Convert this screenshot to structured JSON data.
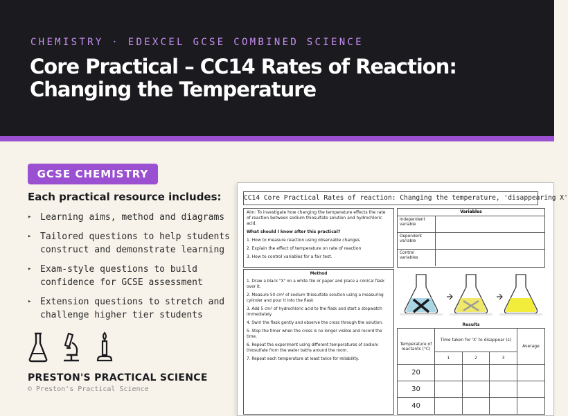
{
  "header": {
    "kicker": "CHEMISTRY · EDEXCEL GCSE COMBINED SCIENCE",
    "title": "Core Practical – CC14 Rates of Reaction: Changing the Temperature"
  },
  "badge": "GCSE CHEMISTRY",
  "includes_heading": "Each practical resource includes:",
  "features": [
    "Learning aims, method and diagrams",
    "Tailored questions to help students construct and demonstrate learning",
    "Exam-style questions to build confidence for GCSE assessment",
    "Extension questions to stretch and challenge higher tier students"
  ],
  "bullet_glyph": "▸",
  "icons": [
    "conical-flask-icon",
    "microscope-icon",
    "bunsen-burner-icon"
  ],
  "brand": "PRESTON'S PRACTICAL SCIENCE",
  "copyright": "© Preston's Practical Science",
  "worksheet": {
    "title": "CC14 Core Practical Rates of reaction: Changing the temperature, 'disappearing X'",
    "aim": "Aim: To investigate how changing the temperature effects the rate of reaction between sodium thiosulfate solution and hydrochloric acid.",
    "knowledge_question": "What should I know after this practical?",
    "objectives": [
      "1. How to measure reaction using observable changes",
      "2. Explain the effect of temperature on rate of reaction",
      "3. How to control variables for a fair test."
    ],
    "method_heading": "Method",
    "method_steps": [
      "1. Draw a black \"X\" on a white tile or paper and place a conical flask over it.",
      "2. Measure 50 cm³ of sodium thiosulfate solution using a measuring cylinder and pour it into the flask",
      "3. Add 5 cm³ of hydrochloric acid to the flask and start a stopwatch immediately",
      "4. Swirl the flask gently and observe the cross through the solution.",
      "5. Stop the timer when the cross is no longer visible and record the time.",
      "6. Repeat the experiment using different temperatures of sodium thiosulfate from the water baths around the room.",
      "7. Repeat each temperature at least twice for reliability."
    ],
    "variables_heading": "Variables",
    "variables": [
      "Independent variable",
      "Dependent variable",
      "Control variables"
    ],
    "results_heading": "Results",
    "results_headers": {
      "temperature": "Temperature of reactants (°C)",
      "time": "Time taken for 'X' to disappear (s)",
      "average": "Average",
      "trials": [
        "1",
        "2",
        "3"
      ]
    },
    "temperatures": [
      "20",
      "30",
      "40"
    ]
  },
  "colors": {
    "hero_bg": "#1b1b1f",
    "accent": "#9b4fd1",
    "kicker": "#c68ef0",
    "page_bg": "#f7f3ea"
  }
}
